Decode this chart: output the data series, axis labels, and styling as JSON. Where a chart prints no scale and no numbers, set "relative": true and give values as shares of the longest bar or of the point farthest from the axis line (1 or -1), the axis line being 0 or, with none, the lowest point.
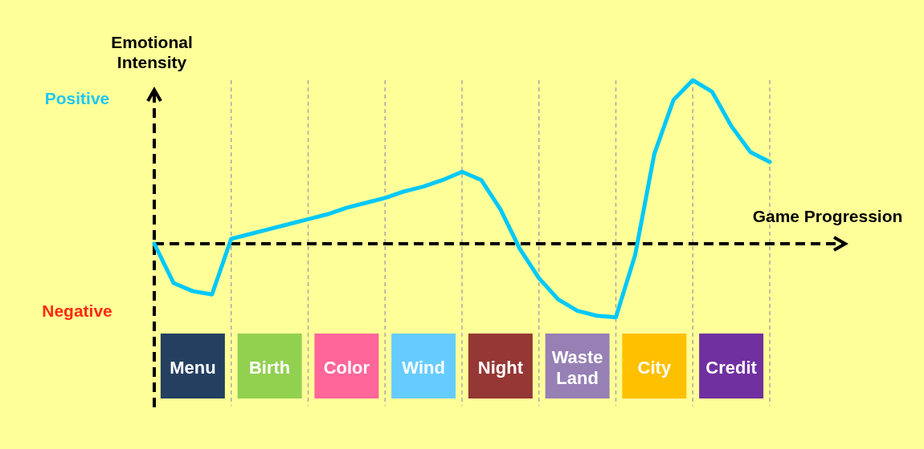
{
  "chart_data": {
    "type": "line",
    "relative": true,
    "xlabel": "Game Progression",
    "ylabel": "Emotional Intensity",
    "categories": [
      null,
      null,
      null,
      null,
      null,
      null,
      null,
      null,
      null,
      null,
      null,
      null,
      null,
      null,
      null,
      null,
      null,
      null,
      null,
      null,
      null,
      null,
      null,
      null,
      null,
      null,
      null,
      null,
      null,
      null,
      null,
      null,
      null
    ],
    "grid": "x",
    "ref_lines": [
      {
        "axis": "y",
        "value": 0,
        "color": "#000000",
        "line_style": "dashed"
      }
    ],
    "line_style": "solid",
    "marker": "none",
    "annotations": [
      "Positive",
      "Negative",
      "Menu",
      "Birth",
      "Color",
      "Wind",
      "Night",
      "Waste Land",
      "City",
      "Credit"
    ],
    "series": [
      {
        "color": "#00c8f8",
        "values": [
          0,
          -0.24,
          -0.29,
          -0.31,
          0.03,
          0.06,
          0.09,
          0.12,
          0.15,
          0.18,
          0.22,
          0.25,
          0.28,
          0.32,
          0.35,
          0.39,
          0.44,
          0.39,
          0.21,
          -0.03,
          -0.21,
          -0.34,
          -0.41,
          -0.44,
          -0.45,
          -0.07,
          0.55,
          0.88,
          1,
          0.93,
          0.72,
          0.56,
          0.5
        ]
      }
    ]
  }
}
